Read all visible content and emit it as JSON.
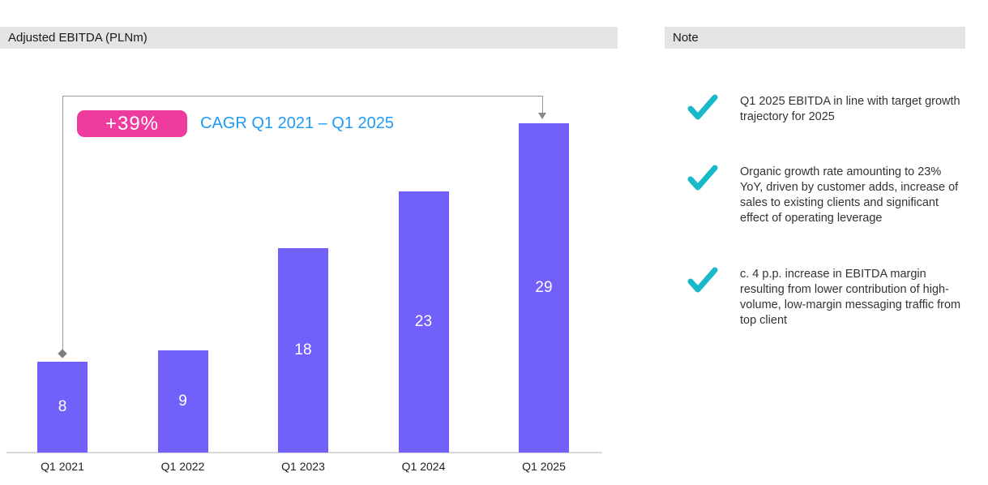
{
  "left_panel": {
    "header": "Adjusted EBITDA (PLNm)"
  },
  "right_panel": {
    "header": "Note"
  },
  "cagr": {
    "badge": "+39%",
    "label": "CAGR Q1 2021 – Q1 2025"
  },
  "chart_data": {
    "type": "bar",
    "title": "Adjusted EBITDA (PLNm)",
    "categories": [
      "Q1 2021",
      "Q1 2022",
      "Q1 2023",
      "Q1 2024",
      "Q1 2025"
    ],
    "values": [
      8,
      9,
      18,
      23,
      29
    ],
    "unit": "PLNm",
    "ylim": [
      0,
      32
    ],
    "grid": false,
    "legend": "none",
    "value_labels": "inside-center",
    "annotation": {
      "badge": "+39%",
      "label": "CAGR Q1 2021 – Q1 2025",
      "from": "Q1 2021",
      "to": "Q1 2025"
    }
  },
  "notes": [
    {
      "icon": "checkmark-icon",
      "text": "Q1 2025 EBITDA in line with target growth trajectory for 2025"
    },
    {
      "icon": "checkmark-icon",
      "text": "Organic growth rate amounting to 23% YoY, driven by customer adds, increase of sales to existing clients and significant effect of operating leverage"
    },
    {
      "icon": "checkmark-icon",
      "text": "c. 4 p.p. increase in EBITDA margin resulting from lower contribution of high-volume, low-margin messaging traffic from top client"
    }
  ],
  "colors": {
    "bar": "#7161fa",
    "bar_value_label": "#ffffff",
    "badge_bg": "#ee3c9e",
    "badge_text": "#ffffff",
    "cagr_label": "#1e9bf2",
    "check": "#18baca",
    "header_bg": "#e4e4e4",
    "bracket_line": "#9a9a9a",
    "axis_line": "#d9d9d9"
  }
}
